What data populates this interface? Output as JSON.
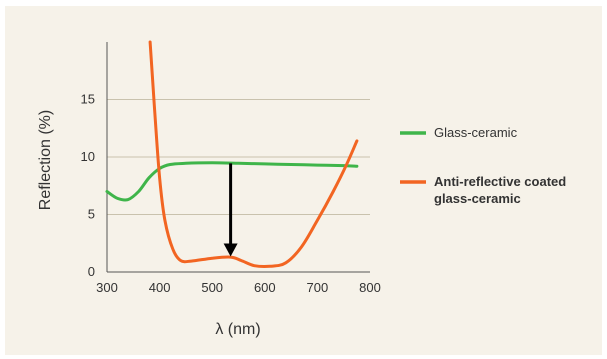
{
  "chart_data": {
    "type": "line",
    "xlabel": "λ (nm)",
    "ylabel": "Reflection (%)",
    "xlim": [
      300,
      800
    ],
    "ylim": [
      0,
      20
    ],
    "xticks": [
      300,
      400,
      500,
      600,
      700,
      800
    ],
    "yticks": [
      0,
      5,
      10,
      15
    ],
    "grid": "horizontal",
    "legend_position": "right",
    "series": [
      {
        "name": "Glass-ceramic",
        "color": "#3fb54a",
        "x": [
          300,
          320,
          340,
          360,
          380,
          400,
          420,
          450,
          500,
          550,
          600,
          650,
          700,
          750,
          775
        ],
        "y": [
          7.0,
          6.4,
          6.3,
          7.0,
          8.2,
          9.0,
          9.35,
          9.45,
          9.5,
          9.45,
          9.4,
          9.35,
          9.3,
          9.25,
          9.2
        ]
      },
      {
        "name": "Anti-reflective coated glass-ceramic",
        "color": "#f26522",
        "x": [
          382,
          390,
          400,
          410,
          425,
          440,
          460,
          500,
          535,
          555,
          580,
          610,
          640,
          670,
          700,
          730,
          755,
          775
        ],
        "y": [
          20.0,
          14.5,
          8.2,
          4.5,
          2.0,
          1.0,
          0.95,
          1.2,
          1.3,
          1.0,
          0.55,
          0.5,
          0.8,
          2.2,
          4.5,
          7.0,
          9.3,
          11.4
        ]
      }
    ],
    "annotation": {
      "type": "arrow",
      "x": 535,
      "y_from": 9.45,
      "y_to": 1.35,
      "color": "#000000"
    }
  }
}
